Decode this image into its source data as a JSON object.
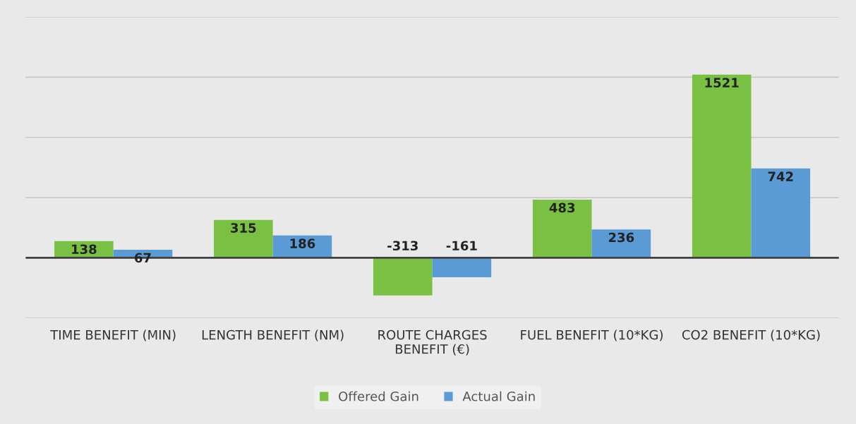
{
  "chart_data": {
    "type": "bar",
    "categories": [
      "TIME BENEFIT (MIN)",
      "LENGTH BENEFIT (NM)",
      "ROUTE CHARGES\nBENEFIT (€)",
      "FUEL BENEFIT (10*KG)",
      "CO2 BENEFIT (10*KG)"
    ],
    "series": [
      {
        "name": "Offered Gain",
        "color": "#7ac143",
        "values": [
          138,
          315,
          -313,
          483,
          1521
        ]
      },
      {
        "name": "Actual Gain",
        "color": "#5b9bd5",
        "values": [
          67,
          186,
          -161,
          236,
          742
        ]
      }
    ],
    "ylim": [
      -500,
      2000
    ],
    "yticks": [
      {
        "value": -500,
        "label": null
      },
      {
        "value": 0,
        "label": null
      },
      {
        "value": 500,
        "label": null
      },
      {
        "value": 1000,
        "label": null
      },
      {
        "value": 1500,
        "label": null
      },
      {
        "value": 2000,
        "label": null
      }
    ],
    "tick_labels": "x",
    "grid": "y",
    "legend": "bottom",
    "data_labels": true
  }
}
